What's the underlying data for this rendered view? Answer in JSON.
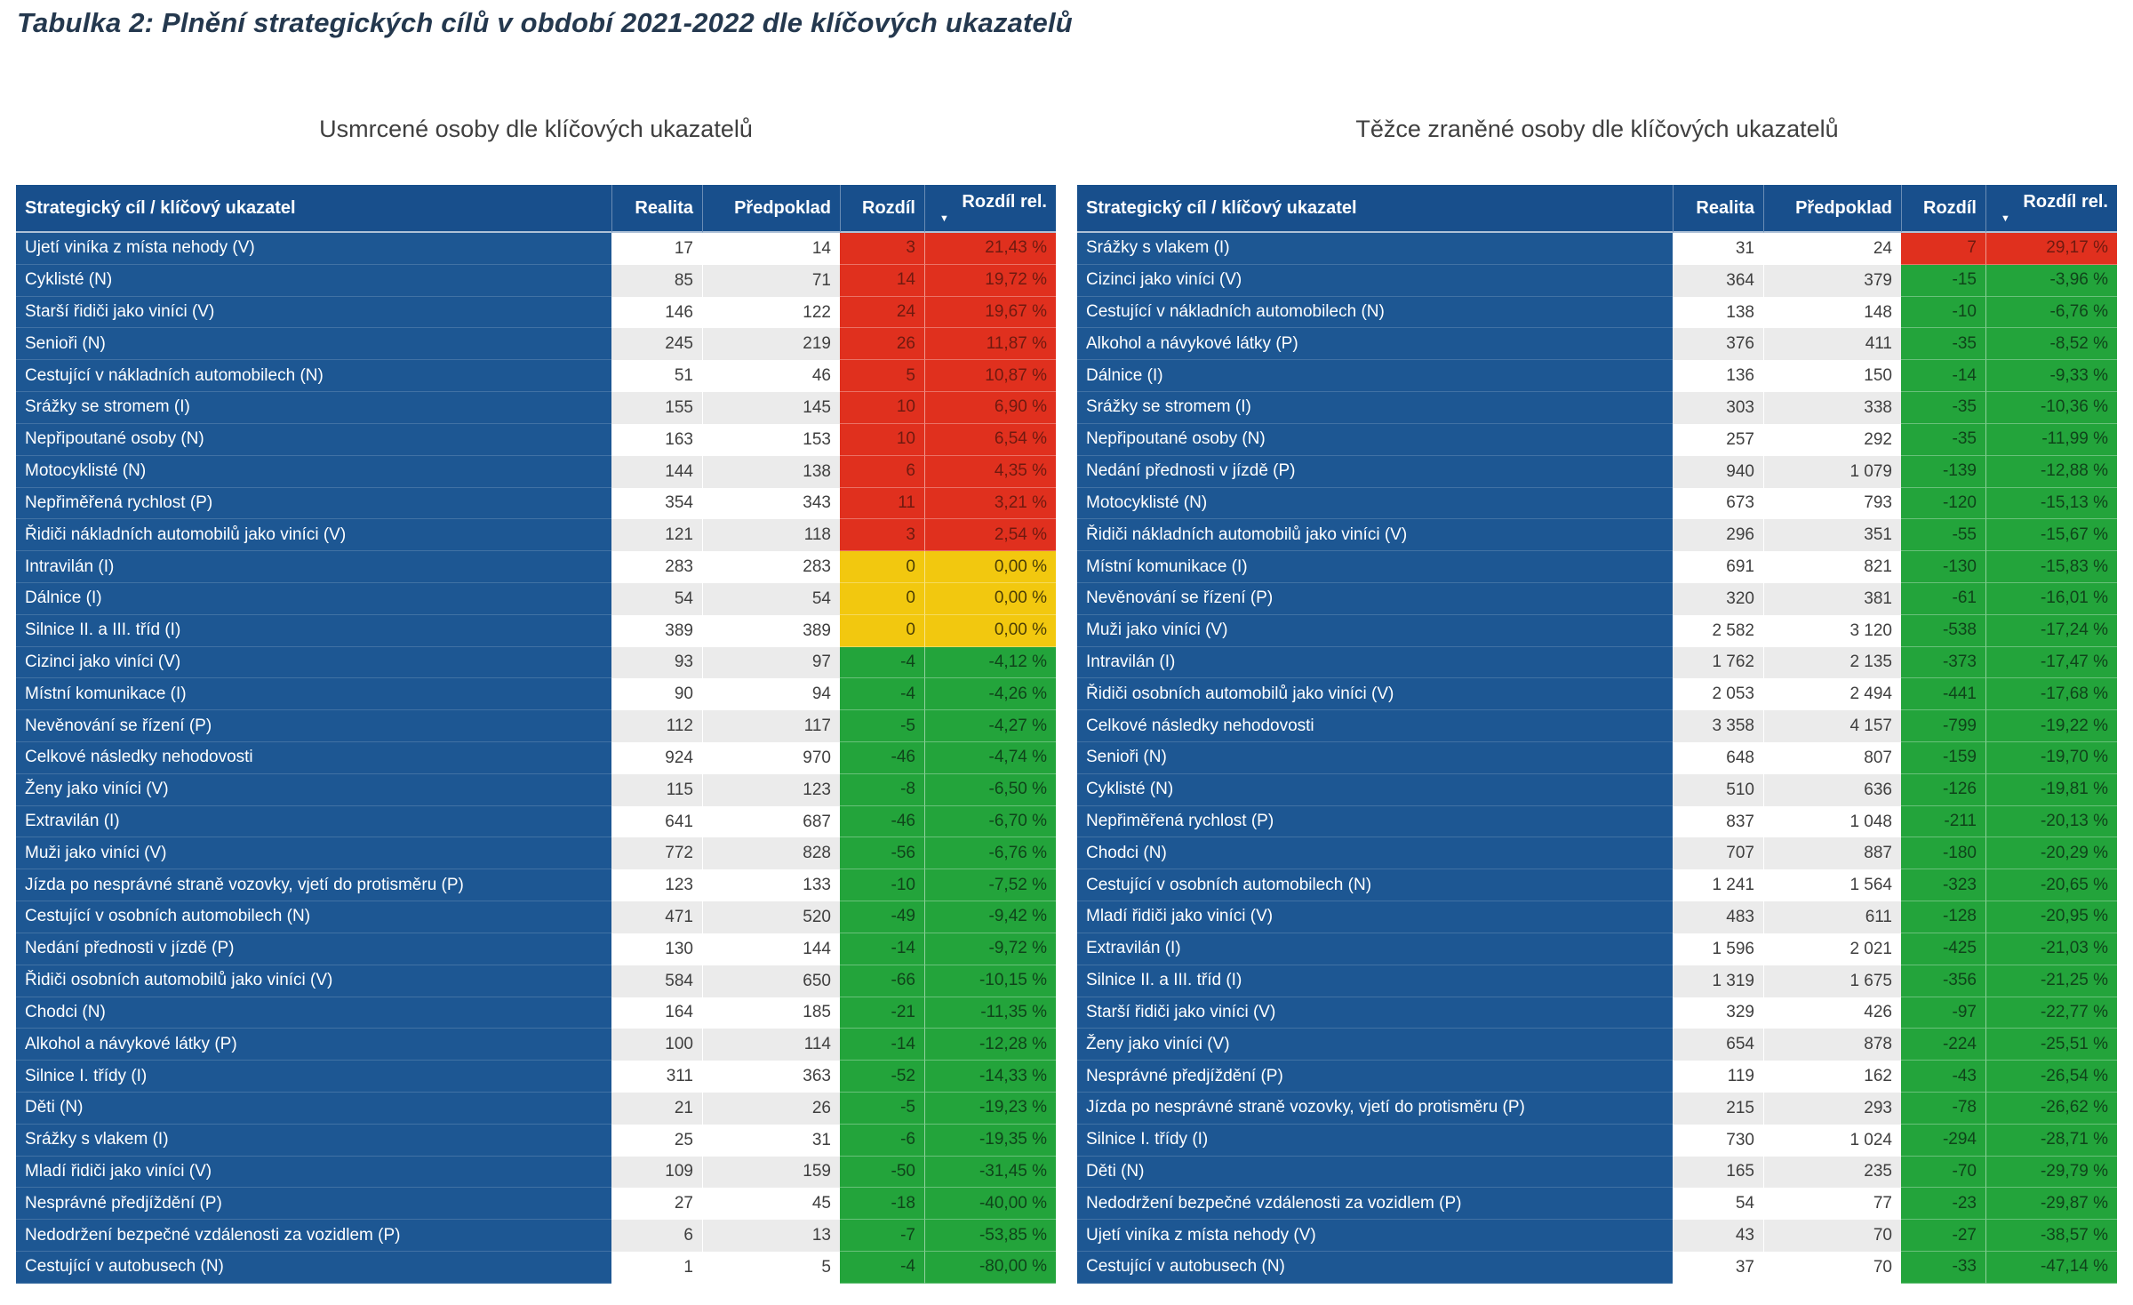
{
  "title": "Tabulka 2: Plnění strategických cílů v období 2021-2022 dle klíčových ukazatelů",
  "icons": {
    "sort_descending": "▼"
  },
  "colors": {
    "title_color": "#24384e",
    "caption_color": "#3f3f3f",
    "header_blue": "#184f8c",
    "row_blue": "#1d5793",
    "band_gray": "#ebebeb",
    "value_text": "#3f3f3f",
    "pos_bg": "#e0301e",
    "pos_text": "#6f1a10",
    "zero_bg": "#f2c80f",
    "zero_text": "#4c3e05",
    "neg_bg": "#23a43b",
    "neg_text": "#0f441a"
  },
  "chart_data": [
    {
      "type": "table",
      "title": "Usmrcené osoby dle klíčových ukazatelů",
      "columns": [
        "Strategický cíl / klíčový ukazatel",
        "Realita",
        "Předpoklad",
        "Rozdíl",
        "Rozdíl rel."
      ],
      "sort": {
        "column": "Rozdíl rel.",
        "direction": "descending"
      },
      "rows": [
        [
          "Ujetí viníka z místa nehody (V)",
          "17",
          "14",
          "3",
          "21,43 %"
        ],
        [
          "Cyklisté (N)",
          "85",
          "71",
          "14",
          "19,72 %"
        ],
        [
          "Starší řidiči jako viníci (V)",
          "146",
          "122",
          "24",
          "19,67 %"
        ],
        [
          "Senioři (N)",
          "245",
          "219",
          "26",
          "11,87 %"
        ],
        [
          "Cestující v nákladních automobilech (N)",
          "51",
          "46",
          "5",
          "10,87 %"
        ],
        [
          "Srážky se stromem (I)",
          "155",
          "145",
          "10",
          "6,90 %"
        ],
        [
          "Nepřipoutané osoby (N)",
          "163",
          "153",
          "10",
          "6,54 %"
        ],
        [
          "Motocyklisté (N)",
          "144",
          "138",
          "6",
          "4,35 %"
        ],
        [
          "Nepřiměřená rychlost (P)",
          "354",
          "343",
          "11",
          "3,21 %"
        ],
        [
          "Řidiči nákladních automobilů jako viníci (V)",
          "121",
          "118",
          "3",
          "2,54 %"
        ],
        [
          "Intravilán (I)",
          "283",
          "283",
          "0",
          "0,00 %"
        ],
        [
          "Dálnice (I)",
          "54",
          "54",
          "0",
          "0,00 %"
        ],
        [
          "Silnice II. a III. tříd (I)",
          "389",
          "389",
          "0",
          "0,00 %"
        ],
        [
          "Cizinci jako viníci (V)",
          "93",
          "97",
          "-4",
          "-4,12 %"
        ],
        [
          "Místní komunikace (I)",
          "90",
          "94",
          "-4",
          "-4,26 %"
        ],
        [
          "Nevěnování se řízení (P)",
          "112",
          "117",
          "-5",
          "-4,27 %"
        ],
        [
          "Celkové následky nehodovosti",
          "924",
          "970",
          "-46",
          "-4,74 %"
        ],
        [
          "Ženy jako viníci (V)",
          "115",
          "123",
          "-8",
          "-6,50 %"
        ],
        [
          "Extravilán (I)",
          "641",
          "687",
          "-46",
          "-6,70 %"
        ],
        [
          "Muži jako viníci (V)",
          "772",
          "828",
          "-56",
          "-6,76 %"
        ],
        [
          "Jízda po nesprávné straně vozovky, vjetí do protisměru (P)",
          "123",
          "133",
          "-10",
          "-7,52 %"
        ],
        [
          "Cestující v osobních automobilech (N)",
          "471",
          "520",
          "-49",
          "-9,42 %"
        ],
        [
          "Nedání přednosti v jízdě (P)",
          "130",
          "144",
          "-14",
          "-9,72 %"
        ],
        [
          "Řidiči osobních automobilů jako viníci (V)",
          "584",
          "650",
          "-66",
          "-10,15 %"
        ],
        [
          "Chodci (N)",
          "164",
          "185",
          "-21",
          "-11,35 %"
        ],
        [
          "Alkohol a návykové látky (P)",
          "100",
          "114",
          "-14",
          "-12,28 %"
        ],
        [
          "Silnice I. třídy (I)",
          "311",
          "363",
          "-52",
          "-14,33 %"
        ],
        [
          "Děti (N)",
          "21",
          "26",
          "-5",
          "-19,23 %"
        ],
        [
          "Srážky s vlakem (I)",
          "25",
          "31",
          "-6",
          "-19,35 %"
        ],
        [
          "Mladí řidiči jako viníci (V)",
          "109",
          "159",
          "-50",
          "-31,45 %"
        ],
        [
          "Nesprávné předjíždění (P)",
          "27",
          "45",
          "-18",
          "-40,00 %"
        ],
        [
          "Nedodržení bezpečné vzdálenosti za vozidlem (P)",
          "6",
          "13",
          "-7",
          "-53,85 %"
        ],
        [
          "Cestující v autobusech (N)",
          "1",
          "5",
          "-4",
          "-80,00 %"
        ]
      ]
    },
    {
      "type": "table",
      "title": "Těžce zraněné osoby dle klíčových ukazatelů",
      "columns": [
        "Strategický cíl / klíčový ukazatel",
        "Realita",
        "Předpoklad",
        "Rozdíl",
        "Rozdíl rel."
      ],
      "sort": {
        "column": "Rozdíl rel.",
        "direction": "descending"
      },
      "rows": [
        [
          "Srážky s vlakem (I)",
          "31",
          "24",
          "7",
          "29,17 %"
        ],
        [
          "Cizinci jako viníci (V)",
          "364",
          "379",
          "-15",
          "-3,96 %"
        ],
        [
          "Cestující v nákladních automobilech (N)",
          "138",
          "148",
          "-10",
          "-6,76 %"
        ],
        [
          "Alkohol a návykové látky (P)",
          "376",
          "411",
          "-35",
          "-8,52 %"
        ],
        [
          "Dálnice (I)",
          "136",
          "150",
          "-14",
          "-9,33 %"
        ],
        [
          "Srážky se stromem (I)",
          "303",
          "338",
          "-35",
          "-10,36 %"
        ],
        [
          "Nepřipoutané osoby (N)",
          "257",
          "292",
          "-35",
          "-11,99 %"
        ],
        [
          "Nedání přednosti v jízdě (P)",
          "940",
          "1 079",
          "-139",
          "-12,88 %"
        ],
        [
          "Motocyklisté (N)",
          "673",
          "793",
          "-120",
          "-15,13 %"
        ],
        [
          "Řidiči nákladních automobilů jako viníci (V)",
          "296",
          "351",
          "-55",
          "-15,67 %"
        ],
        [
          "Místní komunikace (I)",
          "691",
          "821",
          "-130",
          "-15,83 %"
        ],
        [
          "Nevěnování se řízení (P)",
          "320",
          "381",
          "-61",
          "-16,01 %"
        ],
        [
          "Muži jako viníci (V)",
          "2 582",
          "3 120",
          "-538",
          "-17,24 %"
        ],
        [
          "Intravilán (I)",
          "1 762",
          "2 135",
          "-373",
          "-17,47 %"
        ],
        [
          "Řidiči osobních automobilů jako viníci (V)",
          "2 053",
          "2 494",
          "-441",
          "-17,68 %"
        ],
        [
          "Celkové následky nehodovosti",
          "3 358",
          "4 157",
          "-799",
          "-19,22 %"
        ],
        [
          "Senioři (N)",
          "648",
          "807",
          "-159",
          "-19,70 %"
        ],
        [
          "Cyklisté (N)",
          "510",
          "636",
          "-126",
          "-19,81 %"
        ],
        [
          "Nepřiměřená rychlost (P)",
          "837",
          "1 048",
          "-211",
          "-20,13 %"
        ],
        [
          "Chodci (N)",
          "707",
          "887",
          "-180",
          "-20,29 %"
        ],
        [
          "Cestující v osobních automobilech (N)",
          "1 241",
          "1 564",
          "-323",
          "-20,65 %"
        ],
        [
          "Mladí řidiči jako viníci (V)",
          "483",
          "611",
          "-128",
          "-20,95 %"
        ],
        [
          "Extravilán (I)",
          "1 596",
          "2 021",
          "-425",
          "-21,03 %"
        ],
        [
          "Silnice II. a III. tříd (I)",
          "1 319",
          "1 675",
          "-356",
          "-21,25 %"
        ],
        [
          "Starší řidiči jako viníci (V)",
          "329",
          "426",
          "-97",
          "-22,77 %"
        ],
        [
          "Ženy jako viníci (V)",
          "654",
          "878",
          "-224",
          "-25,51 %"
        ],
        [
          "Nesprávné předjíždění (P)",
          "119",
          "162",
          "-43",
          "-26,54 %"
        ],
        [
          "Jízda po nesprávné straně vozovky, vjetí do protisměru (P)",
          "215",
          "293",
          "-78",
          "-26,62 %"
        ],
        [
          "Silnice I. třídy (I)",
          "730",
          "1 024",
          "-294",
          "-28,71 %"
        ],
        [
          "Děti (N)",
          "165",
          "235",
          "-70",
          "-29,79 %"
        ],
        [
          "Nedodržení bezpečné vzdálenosti za vozidlem (P)",
          "54",
          "77",
          "-23",
          "-29,87 %"
        ],
        [
          "Ujetí viníka z místa nehody (V)",
          "43",
          "70",
          "-27",
          "-38,57 %"
        ],
        [
          "Cestující v autobusech (N)",
          "37",
          "70",
          "-33",
          "-47,14 %"
        ]
      ]
    }
  ]
}
